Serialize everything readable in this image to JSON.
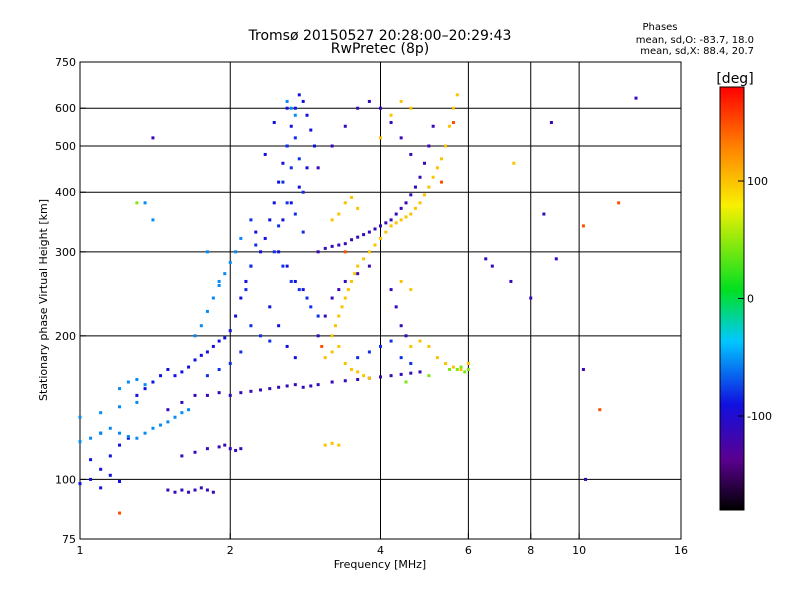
{
  "chart_data": {
    "type": "scatter",
    "title": "Tromsø 20150527 20:28:00–20:29:43",
    "subtitle": "RwPretec (8p)",
    "stats": {
      "header": "Phases",
      "line1": "mean, sd,O: -83.7, 18.0",
      "line2": "mean, sd,X: 88.4, 20.7"
    },
    "xlabel": "Frequency [MHz]",
    "ylabel": "Stationary phase Virtual Height [km]",
    "x_scale": "log",
    "y_scale": "log",
    "xlim": [
      1,
      16
    ],
    "ylim": [
      75,
      750
    ],
    "x_ticks": [
      1,
      2,
      4,
      6,
      8,
      10,
      16
    ],
    "x_tick_labels": [
      "1",
      "2",
      "4",
      "6",
      "8",
      "10",
      "16"
    ],
    "y_ticks": [
      75,
      100,
      200,
      300,
      400,
      500,
      600,
      750
    ],
    "y_tick_labels": [
      "75",
      "100",
      "200",
      "300",
      "400",
      "500",
      "600",
      "750"
    ],
    "x_gridlines": [
      2,
      4,
      6,
      8,
      10
    ],
    "y_gridlines": [
      100,
      200,
      300,
      400,
      500,
      600
    ],
    "colorbar": {
      "label": "[deg]",
      "range": [
        -180,
        180
      ],
      "ticks": [
        100,
        0,
        -100
      ],
      "tick_labels": [
        "100",
        "0",
        "-100"
      ],
      "colormap": "rainbow: black/violet (-180) → blue → cyan → green → yellow → red (180)"
    },
    "series": [
      {
        "phase_deg": -100,
        "points": [
          [
            1.0,
            98
          ],
          [
            1.05,
            100
          ],
          [
            1.1,
            96
          ],
          [
            1.15,
            102
          ],
          [
            1.2,
            99
          ],
          [
            1.1,
            105
          ],
          [
            1.05,
            110
          ],
          [
            1.15,
            112
          ],
          [
            1.2,
            118
          ],
          [
            1.25,
            122
          ],
          [
            1.1,
            125
          ],
          [
            1.3,
            150
          ],
          [
            1.35,
            155
          ],
          [
            1.4,
            160
          ],
          [
            1.45,
            165
          ],
          [
            1.5,
            170
          ],
          [
            1.55,
            165
          ],
          [
            1.6,
            168
          ],
          [
            1.65,
            172
          ],
          [
            1.7,
            178
          ],
          [
            1.75,
            182
          ],
          [
            1.8,
            185
          ],
          [
            1.85,
            190
          ],
          [
            1.9,
            195
          ],
          [
            1.95,
            198
          ],
          [
            2.0,
            205
          ],
          [
            2.05,
            220
          ],
          [
            2.1,
            240
          ],
          [
            2.15,
            260
          ],
          [
            2.2,
            280
          ],
          [
            2.3,
            300
          ],
          [
            2.35,
            320
          ],
          [
            2.4,
            350
          ],
          [
            2.45,
            380
          ],
          [
            2.5,
            420
          ],
          [
            2.55,
            460
          ],
          [
            2.6,
            500
          ],
          [
            2.65,
            550
          ],
          [
            2.7,
            600
          ],
          [
            2.75,
            640
          ],
          [
            2.8,
            620
          ],
          [
            2.85,
            580
          ],
          [
            2.9,
            540
          ],
          [
            2.95,
            500
          ],
          [
            2.5,
            300
          ],
          [
            2.6,
            280
          ],
          [
            2.7,
            260
          ],
          [
            2.8,
            250
          ],
          [
            2.4,
            230
          ],
          [
            2.5,
            210
          ],
          [
            2.6,
            190
          ],
          [
            2.7,
            180
          ],
          [
            2.55,
            350
          ],
          [
            2.65,
            380
          ],
          [
            2.75,
            410
          ],
          [
            2.85,
            450
          ],
          [
            2.6,
            600
          ],
          [
            2.45,
            560
          ],
          [
            2.35,
            480
          ],
          [
            2.25,
            330
          ]
        ]
      },
      {
        "phase_deg": -120,
        "points": [
          [
            1.5,
            95
          ],
          [
            1.55,
            94
          ],
          [
            1.6,
            95
          ],
          [
            1.65,
            94
          ],
          [
            1.7,
            95
          ],
          [
            1.75,
            96
          ],
          [
            1.8,
            95
          ],
          [
            1.85,
            94
          ],
          [
            1.6,
            112
          ],
          [
            1.7,
            114
          ],
          [
            1.8,
            116
          ],
          [
            1.9,
            117
          ],
          [
            1.95,
            118
          ],
          [
            2.0,
            116
          ],
          [
            2.05,
            115
          ],
          [
            2.1,
            116
          ],
          [
            1.5,
            140
          ],
          [
            1.6,
            145
          ],
          [
            1.7,
            150
          ],
          [
            1.8,
            150
          ],
          [
            1.9,
            152
          ],
          [
            2.0,
            150
          ],
          [
            2.1,
            152
          ],
          [
            2.2,
            153
          ],
          [
            2.3,
            154
          ],
          [
            2.4,
            155
          ],
          [
            2.5,
            156
          ],
          [
            2.6,
            157
          ],
          [
            2.7,
            158
          ],
          [
            2.8,
            156
          ],
          [
            2.9,
            157
          ],
          [
            3.0,
            158
          ],
          [
            3.2,
            160
          ],
          [
            3.4,
            161
          ],
          [
            3.6,
            162
          ],
          [
            3.8,
            163
          ],
          [
            4.0,
            164
          ],
          [
            4.2,
            165
          ],
          [
            4.4,
            166
          ],
          [
            4.6,
            167
          ],
          [
            4.8,
            168
          ],
          [
            3.0,
            300
          ],
          [
            3.1,
            305
          ],
          [
            3.2,
            308
          ],
          [
            3.3,
            310
          ],
          [
            3.4,
            312
          ],
          [
            3.5,
            318
          ],
          [
            3.6,
            322
          ],
          [
            3.7,
            326
          ],
          [
            3.8,
            330
          ],
          [
            3.9,
            335
          ],
          [
            4.0,
            340
          ],
          [
            4.1,
            345
          ],
          [
            4.2,
            350
          ],
          [
            4.3,
            360
          ],
          [
            4.4,
            370
          ],
          [
            4.5,
            380
          ],
          [
            4.6,
            395
          ],
          [
            4.7,
            410
          ],
          [
            4.8,
            430
          ],
          [
            4.9,
            460
          ],
          [
            5.0,
            500
          ],
          [
            5.1,
            550
          ],
          [
            3.0,
            200
          ],
          [
            3.1,
            220
          ],
          [
            3.2,
            240
          ],
          [
            3.3,
            250
          ],
          [
            3.4,
            260
          ],
          [
            3.6,
            270
          ],
          [
            3.8,
            280
          ],
          [
            3.0,
            450
          ],
          [
            3.2,
            500
          ],
          [
            3.4,
            550
          ],
          [
            3.6,
            600
          ],
          [
            3.8,
            620
          ],
          [
            4.0,
            600
          ],
          [
            4.2,
            560
          ],
          [
            4.4,
            520
          ],
          [
            4.6,
            480
          ],
          [
            4.2,
            250
          ],
          [
            4.3,
            230
          ],
          [
            4.4,
            210
          ],
          [
            4.5,
            200
          ],
          [
            6.5,
            290
          ],
          [
            6.7,
            280
          ],
          [
            7.3,
            260
          ],
          [
            8.0,
            240
          ],
          [
            8.5,
            360
          ],
          [
            9.0,
            290
          ],
          [
            1.4,
            520
          ],
          [
            13,
            630
          ],
          [
            8.8,
            560
          ],
          [
            10.2,
            170
          ],
          [
            10.3,
            100
          ]
        ]
      },
      {
        "phase_deg": -90,
        "points": [
          [
            2.6,
            500
          ],
          [
            2.7,
            520
          ],
          [
            2.65,
            450
          ],
          [
            2.75,
            470
          ],
          [
            2.55,
            420
          ],
          [
            2.8,
            400
          ],
          [
            2.6,
            380
          ],
          [
            2.7,
            360
          ],
          [
            2.5,
            340
          ],
          [
            2.8,
            330
          ],
          [
            2.45,
            300
          ],
          [
            2.55,
            280
          ],
          [
            2.65,
            260
          ],
          [
            2.75,
            250
          ],
          [
            2.85,
            240
          ],
          [
            2.9,
            230
          ],
          [
            3.0,
            220
          ],
          [
            2.2,
            210
          ],
          [
            2.3,
            200
          ],
          [
            2.4,
            195
          ],
          [
            2.1,
            185
          ],
          [
            2.0,
            175
          ],
          [
            1.9,
            170
          ],
          [
            1.8,
            165
          ],
          [
            2.2,
            350
          ],
          [
            2.25,
            310
          ],
          [
            2.2,
            280
          ],
          [
            2.15,
            250
          ],
          [
            3.6,
            180
          ],
          [
            3.8,
            185
          ],
          [
            4.0,
            190
          ],
          [
            4.2,
            195
          ],
          [
            4.4,
            180
          ],
          [
            4.6,
            175
          ]
        ]
      },
      {
        "phase_deg": -60,
        "points": [
          [
            1.0,
            120
          ],
          [
            1.05,
            122
          ],
          [
            1.1,
            125
          ],
          [
            1.15,
            128
          ],
          [
            1.2,
            125
          ],
          [
            1.25,
            123
          ],
          [
            1.3,
            122
          ],
          [
            1.35,
            125
          ],
          [
            1.4,
            128
          ],
          [
            1.45,
            130
          ],
          [
            1.5,
            132
          ],
          [
            1.55,
            135
          ],
          [
            1.6,
            138
          ],
          [
            1.65,
            140
          ],
          [
            1.0,
            135
          ],
          [
            1.1,
            138
          ],
          [
            1.2,
            142
          ],
          [
            1.3,
            145
          ],
          [
            1.2,
            155
          ],
          [
            1.25,
            160
          ],
          [
            1.3,
            162
          ],
          [
            1.35,
            158
          ],
          [
            1.7,
            200
          ],
          [
            1.75,
            210
          ],
          [
            1.8,
            225
          ],
          [
            1.85,
            240
          ],
          [
            1.9,
            255
          ],
          [
            1.95,
            270
          ],
          [
            2.0,
            285
          ],
          [
            2.05,
            300
          ],
          [
            2.1,
            320
          ],
          [
            2.6,
            620
          ],
          [
            2.65,
            600
          ],
          [
            2.7,
            580
          ],
          [
            1.35,
            380
          ],
          [
            1.4,
            350
          ],
          [
            1.8,
            300
          ],
          [
            1.9,
            260
          ]
        ]
      },
      {
        "phase_deg": 100,
        "points": [
          [
            3.2,
            200
          ],
          [
            3.25,
            210
          ],
          [
            3.3,
            220
          ],
          [
            3.35,
            230
          ],
          [
            3.4,
            240
          ],
          [
            3.45,
            250
          ],
          [
            3.5,
            260
          ],
          [
            3.55,
            270
          ],
          [
            3.6,
            280
          ],
          [
            3.7,
            290
          ],
          [
            3.8,
            300
          ],
          [
            3.9,
            310
          ],
          [
            4.0,
            320
          ],
          [
            4.1,
            330
          ],
          [
            4.2,
            340
          ],
          [
            4.3,
            345
          ],
          [
            4.4,
            350
          ],
          [
            4.5,
            355
          ],
          [
            4.6,
            360
          ],
          [
            4.7,
            370
          ],
          [
            4.8,
            380
          ],
          [
            4.9,
            395
          ],
          [
            5.0,
            410
          ],
          [
            5.1,
            430
          ],
          [
            5.2,
            450
          ],
          [
            5.3,
            470
          ],
          [
            5.4,
            500
          ],
          [
            5.5,
            550
          ],
          [
            5.6,
            600
          ],
          [
            5.7,
            640
          ],
          [
            3.4,
            380
          ],
          [
            3.5,
            390
          ],
          [
            3.6,
            370
          ],
          [
            3.3,
            360
          ],
          [
            3.2,
            350
          ],
          [
            3.1,
            180
          ],
          [
            3.2,
            185
          ],
          [
            3.3,
            190
          ],
          [
            3.4,
            175
          ],
          [
            3.5,
            170
          ],
          [
            3.6,
            168
          ],
          [
            3.7,
            165
          ],
          [
            3.8,
            163
          ],
          [
            4.6,
            190
          ],
          [
            4.8,
            195
          ],
          [
            5.0,
            190
          ],
          [
            5.2,
            180
          ],
          [
            5.4,
            175
          ],
          [
            5.6,
            172
          ],
          [
            5.8,
            170
          ],
          [
            4.4,
            260
          ],
          [
            4.6,
            250
          ],
          [
            3.1,
            118
          ],
          [
            3.2,
            119
          ],
          [
            3.3,
            118
          ],
          [
            4.0,
            520
          ],
          [
            4.2,
            580
          ],
          [
            4.4,
            620
          ],
          [
            4.6,
            600
          ],
          [
            6.0,
            175
          ],
          [
            7.4,
            460
          ]
        ]
      },
      {
        "phase_deg": 40,
        "points": [
          [
            5.7,
            170
          ],
          [
            5.8,
            172
          ],
          [
            5.9,
            168
          ],
          [
            6.0,
            170
          ],
          [
            1.3,
            380
          ],
          [
            4.5,
            160
          ],
          [
            5.0,
            165
          ],
          [
            5.5,
            170
          ]
        ]
      },
      {
        "phase_deg": 150,
        "points": [
          [
            3.05,
            190
          ],
          [
            3.4,
            300
          ],
          [
            5.3,
            420
          ],
          [
            5.6,
            560
          ],
          [
            1.2,
            85
          ],
          [
            10.2,
            340
          ],
          [
            11,
            140
          ],
          [
            12,
            380
          ]
        ]
      }
    ]
  }
}
